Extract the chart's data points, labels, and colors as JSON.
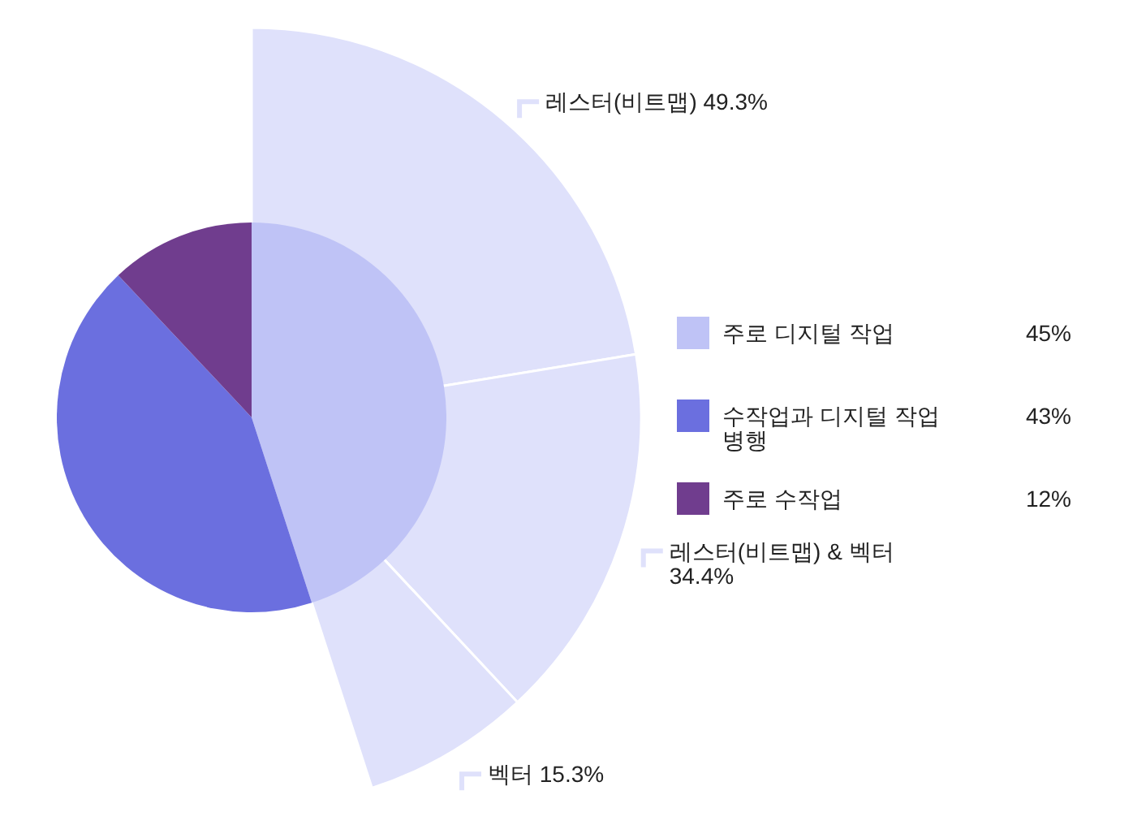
{
  "chart_data": [
    {
      "type": "pie",
      "categories": [
        "주로 디지털 작업",
        "수작업과 디지털 작업 병행",
        "주로 수작업"
      ],
      "values": [
        45,
        43,
        12
      ],
      "colors": [
        "#bfc3f6",
        "#6b6fdf",
        "#703d8e"
      ],
      "value_labels": [
        "45%",
        "43%",
        "12%"
      ],
      "legend": "right"
    },
    {
      "type": "pie",
      "categories": [
        "레스터(비트맵)",
        "레스터(비트맵) & 벡터",
        "벡터"
      ],
      "values": [
        49.3,
        34.4,
        15.3
      ],
      "colors": [
        "#dfe1fb",
        "#dfe1fb",
        "#dfe1fb"
      ],
      "value_labels": [
        "49.3%",
        "34.4%",
        "15.3%"
      ]
    }
  ]
}
